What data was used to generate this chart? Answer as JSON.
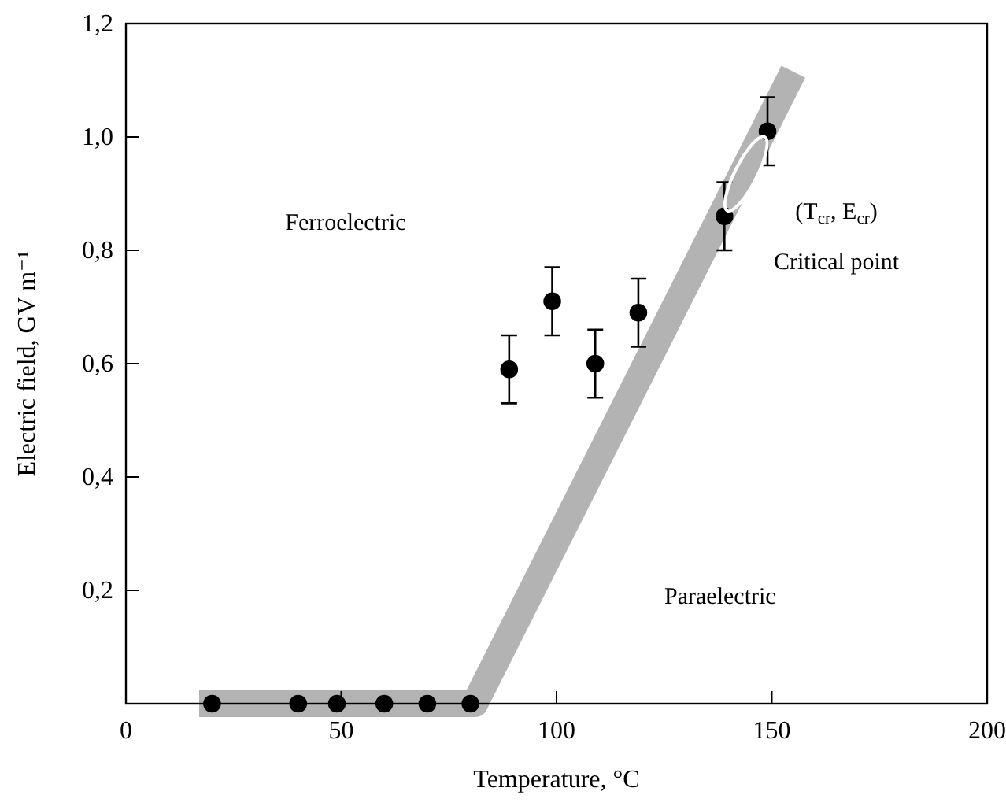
{
  "chart_data": {
    "type": "scatter",
    "xlabel": "Temperature, °C",
    "ylabel": "Electric field, GV m⁻¹",
    "xlim": [
      0,
      200
    ],
    "ylim": [
      0,
      1.2
    ],
    "xticks": [
      0,
      50,
      100,
      150,
      200
    ],
    "yticks": [
      {
        "value": 0.2,
        "label": "0,2"
      },
      {
        "value": 0.4,
        "label": "0,4"
      },
      {
        "value": 0.6,
        "label": "0,6"
      },
      {
        "value": 0.8,
        "label": "0,8"
      },
      {
        "value": 1.0,
        "label": "1,0"
      },
      {
        "value": 1.2,
        "label": "1,2"
      }
    ],
    "grid": false,
    "marker": "circle",
    "series": [
      {
        "type": "line",
        "color": "#b3b3b3",
        "marker": "none",
        "x": [
          17,
          81,
          155
        ],
        "values": [
          0,
          0,
          1.115
        ]
      },
      {
        "color": "#000000",
        "x": [
          20,
          40,
          49,
          60,
          70,
          80,
          89,
          99,
          109,
          119,
          139,
          149
        ],
        "values": [
          0,
          0,
          0,
          0,
          0,
          0,
          0.59,
          0.71,
          0.6,
          0.69,
          0.86,
          1.01
        ],
        "errors": [
          null,
          null,
          null,
          null,
          null,
          null,
          0.06,
          0.06,
          0.06,
          0.06,
          0.06,
          0.06
        ]
      }
    ],
    "annotations": [
      "Ferroelectric",
      "Paraelectric",
      "(T$_{cr}$, E$_{cr}$)",
      "Critical point"
    ]
  }
}
